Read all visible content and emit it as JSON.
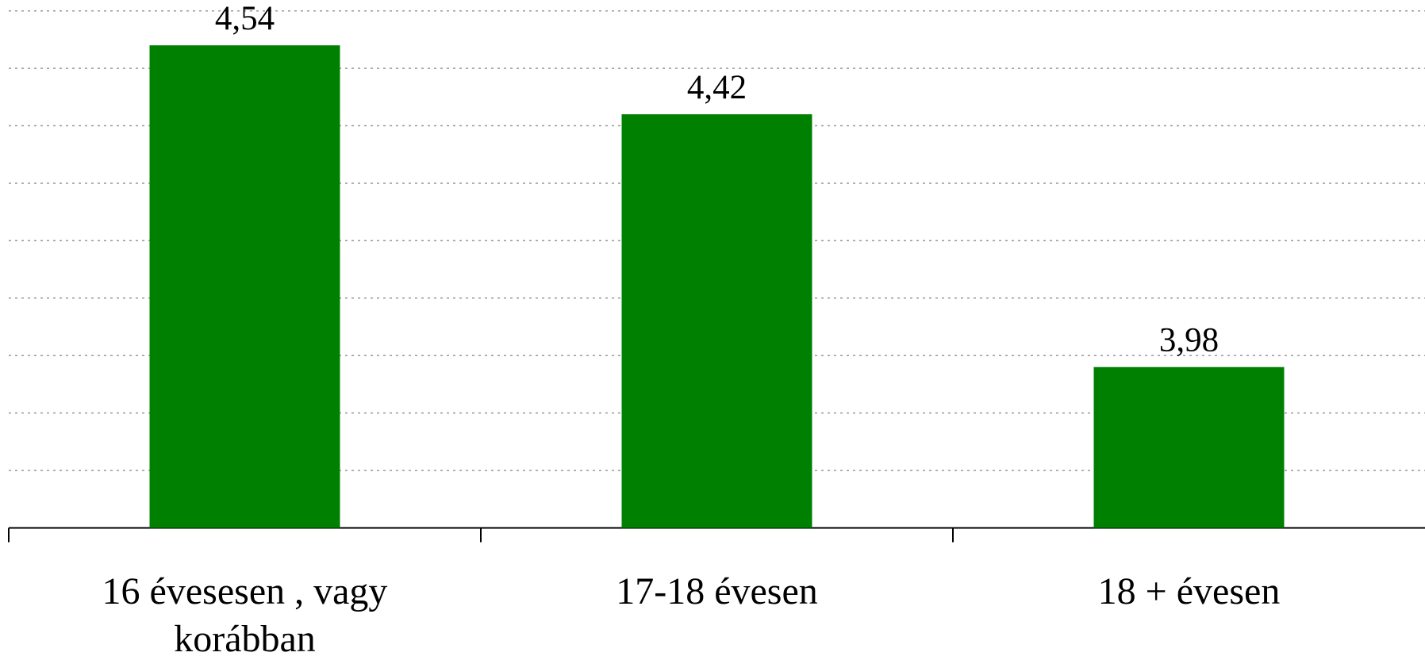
{
  "chart_data": {
    "type": "bar",
    "categories": [
      "16 évesesen , vagy korábban",
      "17-18 évesen",
      "18 + évesen"
    ],
    "values": [
      4.54,
      4.42,
      3.98
    ],
    "value_labels": [
      "4,54",
      "4,42",
      "3,98"
    ],
    "color": "#008000",
    "ylim": [
      3.7,
      4.6
    ],
    "yticks": [
      3.7,
      3.8,
      3.9,
      4.0,
      4.1,
      4.2,
      4.3,
      4.4,
      4.5,
      4.6
    ],
    "grid": true
  }
}
